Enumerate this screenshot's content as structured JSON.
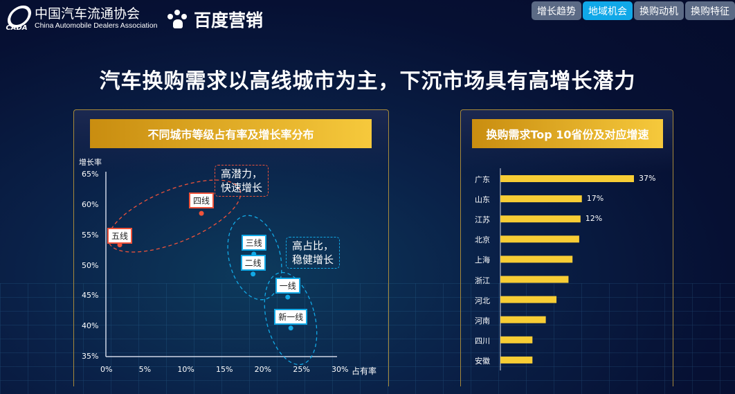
{
  "header": {
    "assoc_logo_text": "CADA",
    "assoc_name_cn": "中国汽车流通协会",
    "assoc_name_en": "China Automobile Dealers Association",
    "baidu_logo": "百度营销",
    "tabs": [
      {
        "label": "增长趋势",
        "active": false
      },
      {
        "label": "地域机会",
        "active": true
      },
      {
        "label": "换购动机",
        "active": false
      },
      {
        "label": "换购特征",
        "active": false
      }
    ]
  },
  "title": "汽车换购需求以高线城市为主，下沉市场具有高增长潜力",
  "colors": {
    "gold": "#f6c93c",
    "red": "#f0533a",
    "blue": "#12a9e6",
    "bar": "#f7cd35"
  },
  "chart_data": [
    {
      "type": "scatter",
      "title": "不同城市等级占有率及增长率分布",
      "xlabel": "占有率",
      "ylabel": "增长率",
      "xlim": [
        0,
        30
      ],
      "ylim": [
        35,
        65
      ],
      "xticks": [
        "0%",
        "5%",
        "10%",
        "15%",
        "20%",
        "25%",
        "30%"
      ],
      "yticks": [
        "65%",
        "60%",
        "55%",
        "50%",
        "45%",
        "40%",
        "35%"
      ],
      "points": [
        {
          "label": "五线",
          "x": 1.8,
          "y": 53.4,
          "group": "red"
        },
        {
          "label": "四线",
          "x": 12.4,
          "y": 58.6,
          "group": "red"
        },
        {
          "label": "三线",
          "x": 19.2,
          "y": 51.9,
          "group": "blue"
        },
        {
          "label": "二线",
          "x": 19.1,
          "y": 48.6,
          "group": "blue"
        },
        {
          "label": "一线",
          "x": 23.6,
          "y": 44.8,
          "group": "blue"
        },
        {
          "label": "新一线",
          "x": 24.0,
          "y": 39.7,
          "group": "blue"
        }
      ],
      "annotations": [
        {
          "line1": "高潜力，",
          "line2": "快速增长"
        },
        {
          "line1": "高占比，",
          "line2": "稳健增长"
        }
      ]
    },
    {
      "type": "bar",
      "orientation": "horizontal",
      "title": "换购需求Top 10省份及对应增速",
      "categories": [
        "广东",
        "山东",
        "江苏",
        "北京",
        "上海",
        "浙江",
        "河北",
        "河南",
        "四川",
        "安徽"
      ],
      "values": [
        100,
        61,
        60,
        59,
        54,
        51,
        42,
        34,
        24,
        24
      ],
      "data_labels": [
        "37%",
        "17%",
        "12%",
        "",
        "",
        "",
        "",
        "",
        "",
        ""
      ]
    }
  ]
}
